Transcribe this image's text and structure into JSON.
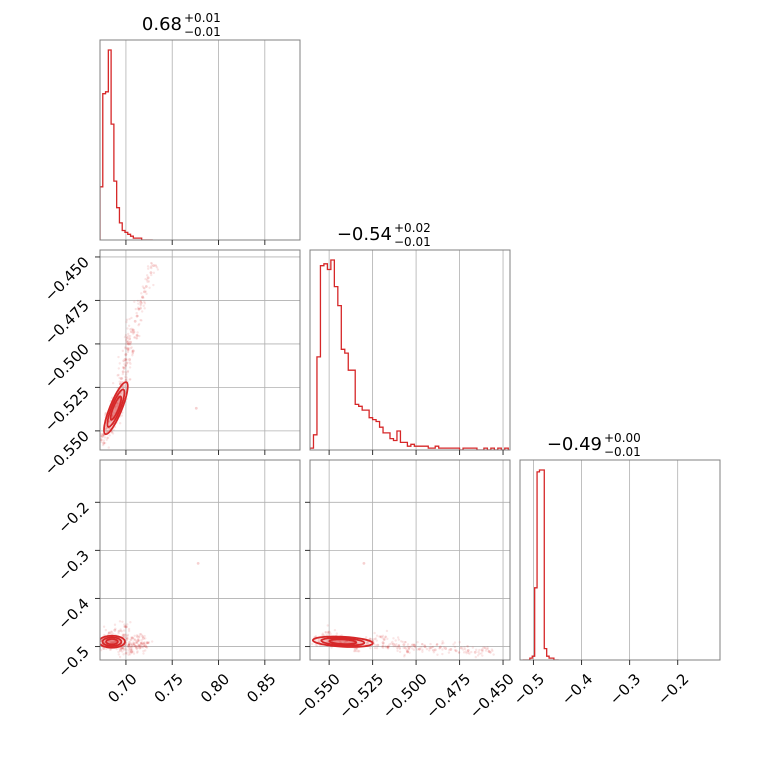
{
  "chart_data": {
    "type": "corner",
    "color": "#d62728",
    "parameters": [
      {
        "title": {
          "median": "0.68",
          "plus": "+0.01",
          "minus": "−0.01"
        },
        "range": [
          0.672,
          0.888
        ],
        "ticks": [
          0.7,
          0.75,
          0.8,
          0.85
        ],
        "tick_labels": [
          "0.70",
          "0.75",
          "0.80",
          "0.85"
        ]
      },
      {
        "title": {
          "median": "−0.54",
          "plus": "+0.02",
          "minus": "−0.01"
        },
        "range": [
          -0.561,
          -0.446
        ],
        "ticks": [
          -0.55,
          -0.525,
          -0.5,
          -0.475,
          -0.45
        ],
        "tick_labels": [
          "−0.550",
          "−0.525",
          "−0.500",
          "−0.475",
          "−0.450"
        ]
      },
      {
        "title": {
          "median": "−0.49",
          "plus": "+0.00",
          "minus": "−0.01"
        },
        "range": [
          -0.528,
          -0.112
        ],
        "ticks": [
          -0.5,
          -0.4,
          -0.3,
          -0.2
        ],
        "tick_labels": [
          "−0.5",
          "−0.4",
          "−0.3",
          "−0.2"
        ]
      }
    ],
    "histograms": [
      {
        "x": [
          0.6735,
          0.6765,
          0.6795,
          0.6825,
          0.6855,
          0.6885,
          0.6915,
          0.6945,
          0.6975,
          0.7005,
          0.7035,
          0.7065,
          0.7095,
          0.7125,
          0.7155,
          0.7185,
          0.7215,
          0.7245,
          0.7275
        ],
        "counts": [
          28,
          77,
          78,
          100,
          61,
          31,
          17,
          9,
          5,
          4,
          3,
          2,
          1,
          1,
          1,
          0,
          0,
          0,
          0
        ]
      },
      {
        "x": [
          -0.56,
          -0.558,
          -0.556,
          -0.554,
          -0.552,
          -0.55,
          -0.548,
          -0.546,
          -0.544,
          -0.542,
          -0.54,
          -0.538,
          -0.536,
          -0.534,
          -0.532,
          -0.53,
          -0.528,
          -0.526,
          -0.524,
          -0.522,
          -0.52,
          -0.518,
          -0.516,
          -0.514,
          -0.512,
          -0.51,
          -0.508,
          -0.506,
          -0.504,
          -0.502,
          -0.5,
          -0.498,
          -0.496,
          -0.494,
          -0.492,
          -0.49,
          -0.488,
          -0.486,
          -0.484,
          -0.482,
          -0.48,
          -0.478,
          -0.476,
          -0.474,
          -0.472,
          -0.47,
          -0.468,
          -0.466,
          -0.464,
          -0.462,
          -0.46,
          -0.458,
          -0.456,
          -0.454,
          -0.452,
          -0.45,
          -0.448
        ],
        "counts": [
          1,
          8,
          49,
          97,
          98,
          95,
          100,
          86,
          76,
          53,
          51,
          42,
          42,
          24,
          23,
          21,
          21,
          17,
          16,
          15,
          12,
          9,
          9,
          6,
          5,
          10,
          4,
          4,
          2,
          3,
          2,
          2,
          2,
          2,
          1,
          1,
          2,
          1,
          1,
          1,
          1,
          1,
          1,
          0,
          1,
          1,
          1,
          1,
          0,
          0,
          1,
          0,
          1,
          0,
          1,
          0,
          1
        ]
      },
      {
        "x": [
          -0.52,
          -0.515,
          -0.51,
          -0.505,
          -0.5,
          -0.495,
          -0.49,
          -0.485,
          -0.48,
          -0.475,
          -0.47,
          -0.465,
          -0.46,
          -0.455,
          -0.45
        ],
        "counts": [
          0,
          0,
          0,
          1,
          2,
          38,
          99,
          100,
          100,
          6,
          2,
          1,
          1,
          0,
          0
        ]
      }
    ],
    "scatter_pairs": [
      {
        "x_param": 0,
        "y_param": 1,
        "center": [
          0.687,
          -0.545
        ],
        "points_x": [
          0.673,
          0.675,
          0.676,
          0.678,
          0.68,
          0.681,
          0.682,
          0.684,
          0.685,
          0.686,
          0.688,
          0.689,
          0.69,
          0.691,
          0.692,
          0.693,
          0.694,
          0.695,
          0.696,
          0.697,
          0.698,
          0.699,
          0.7,
          0.701,
          0.702,
          0.703,
          0.704,
          0.705,
          0.706,
          0.708,
          0.71,
          0.712,
          0.714,
          0.716,
          0.718,
          0.72,
          0.722,
          0.724,
          0.727,
          0.73,
          0.676,
          0.68,
          0.684,
          0.688,
          0.692,
          0.696,
          0.7,
          0.704,
          0.708,
          0.712,
          0.776
        ],
        "points_y": [
          -0.555,
          -0.553,
          -0.552,
          -0.549,
          -0.548,
          -0.545,
          -0.548,
          -0.543,
          -0.541,
          -0.546,
          -0.536,
          -0.54,
          -0.534,
          -0.529,
          -0.531,
          -0.527,
          -0.523,
          -0.52,
          -0.524,
          -0.516,
          -0.514,
          -0.509,
          -0.506,
          -0.511,
          -0.503,
          -0.5,
          -0.497,
          -0.499,
          -0.493,
          -0.492,
          -0.487,
          -0.484,
          -0.48,
          -0.476,
          -0.473,
          -0.47,
          -0.467,
          -0.462,
          -0.459,
          -0.455,
          -0.557,
          -0.551,
          -0.55,
          -0.543,
          -0.537,
          -0.533,
          -0.521,
          -0.509,
          -0.504,
          -0.495,
          -0.537
        ]
      },
      {
        "x_param": 0,
        "y_param": 2,
        "center": [
          0.686,
          -0.49
        ],
        "points_x": [
          0.673,
          0.675,
          0.677,
          0.679,
          0.681,
          0.683,
          0.685,
          0.687,
          0.689,
          0.691,
          0.693,
          0.695,
          0.697,
          0.699,
          0.701,
          0.703,
          0.705,
          0.707,
          0.709,
          0.711,
          0.713,
          0.715,
          0.717,
          0.719,
          0.721,
          0.723,
          0.676,
          0.682,
          0.688,
          0.694,
          0.7,
          0.706,
          0.778
        ],
        "points_y": [
          -0.487,
          -0.482,
          -0.492,
          -0.497,
          -0.485,
          -0.479,
          -0.501,
          -0.493,
          -0.489,
          -0.48,
          -0.497,
          -0.503,
          -0.476,
          -0.491,
          -0.485,
          -0.498,
          -0.505,
          -0.482,
          -0.494,
          -0.5,
          -0.488,
          -0.503,
          -0.495,
          -0.483,
          -0.499,
          -0.492,
          -0.504,
          -0.472,
          -0.466,
          -0.508,
          -0.459,
          -0.511,
          -0.327
        ]
      },
      {
        "x_param": 1,
        "y_param": 2,
        "center": [
          -0.545,
          -0.49
        ],
        "points_x": [
          -0.558,
          -0.556,
          -0.553,
          -0.551,
          -0.548,
          -0.546,
          -0.543,
          -0.54,
          -0.537,
          -0.534,
          -0.531,
          -0.528,
          -0.525,
          -0.522,
          -0.519,
          -0.516,
          -0.513,
          -0.51,
          -0.507,
          -0.504,
          -0.501,
          -0.498,
          -0.495,
          -0.492,
          -0.489,
          -0.486,
          -0.483,
          -0.48,
          -0.477,
          -0.474,
          -0.47,
          -0.466,
          -0.462,
          -0.458,
          -0.55,
          -0.535,
          -0.52,
          -0.505,
          -0.53
        ],
        "points_y": [
          -0.484,
          -0.492,
          -0.478,
          -0.497,
          -0.486,
          -0.48,
          -0.494,
          -0.489,
          -0.483,
          -0.496,
          -0.487,
          -0.493,
          -0.489,
          -0.497,
          -0.492,
          -0.501,
          -0.495,
          -0.499,
          -0.496,
          -0.502,
          -0.498,
          -0.505,
          -0.5,
          -0.503,
          -0.507,
          -0.501,
          -0.504,
          -0.506,
          -0.509,
          -0.503,
          -0.508,
          -0.512,
          -0.507,
          -0.51,
          -0.47,
          -0.505,
          -0.48,
          -0.511,
          -0.327
        ]
      }
    ]
  }
}
